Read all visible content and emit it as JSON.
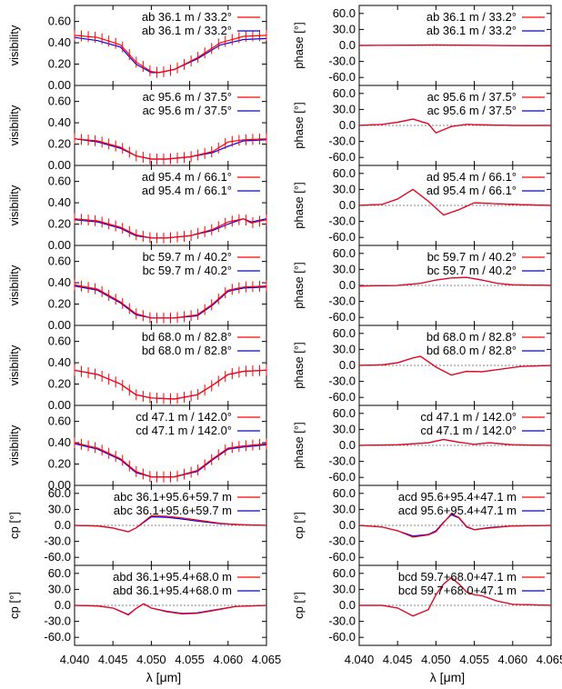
{
  "figure": {
    "xlabel": "λ [μm]",
    "x_ticks": [
      "4.040",
      "4.045",
      "4.050",
      "4.055",
      "4.060",
      "4.065"
    ],
    "x_tick_values": [
      4.04,
      4.045,
      4.05,
      4.055,
      4.06,
      4.065
    ],
    "xlim": [
      4.04,
      4.065
    ],
    "series_colors": [
      "#ff0000",
      "#0000ff"
    ]
  },
  "chart_data": [
    {
      "type": "line",
      "panel": "visibility-ab",
      "ylabel": "visibility",
      "ylim": [
        0,
        0.75
      ],
      "yticks": [
        "0.00",
        "0.20",
        "0.40",
        "0.60"
      ],
      "ytick_values": [
        0,
        0.2,
        0.4,
        0.6
      ],
      "legend": [
        "ab 36.1 m / 33.2°",
        "ab 36.1 m / 33.2°"
      ],
      "error_bars": true,
      "x": [
        4.04,
        4.043,
        4.046,
        4.048,
        4.05,
        4.051,
        4.053,
        4.056,
        4.059,
        4.062,
        4.065
      ],
      "series": [
        {
          "name": "ab 36.1 m / 33.2°",
          "values": [
            0.47,
            0.45,
            0.38,
            0.22,
            0.13,
            0.12,
            0.15,
            0.26,
            0.4,
            0.46,
            0.47
          ]
        },
        {
          "name": "ab 36.1 m / 33.2°",
          "values": [
            0.45,
            0.42,
            0.36,
            0.2,
            0.12,
            0.12,
            0.15,
            0.25,
            0.38,
            0.43,
            0.44
          ]
        }
      ]
    },
    {
      "type": "line",
      "panel": "phase-ab",
      "ylabel": "phase [°]",
      "ylim": [
        -75,
        75
      ],
      "yticks": [
        "60.0",
        "30.0",
        "0.0",
        "-30.0",
        "-60.0"
      ],
      "ytick_values": [
        60,
        30,
        0,
        -30,
        -60
      ],
      "legend": [
        "ab 36.1 m / 33.2°",
        "ab 36.1 m / 33.2°"
      ],
      "error_bars": false,
      "x": [
        4.04,
        4.045,
        4.05,
        4.055,
        4.06,
        4.065
      ],
      "series": [
        {
          "name": "ab 36.1 m / 33.2°",
          "values": [
            0,
            0.3,
            0.8,
            0.2,
            -0.3,
            -0.6
          ]
        },
        {
          "name": "ab 36.1 m / 33.2°",
          "values": [
            0,
            0.4,
            0.9,
            0.3,
            -0.2,
            -0.5
          ]
        }
      ]
    },
    {
      "type": "line",
      "panel": "visibility-ac",
      "ylabel": "visibility",
      "ylim": [
        0,
        0.75
      ],
      "yticks": [
        "0.00",
        "0.20",
        "0.40",
        "0.60"
      ],
      "ytick_values": [
        0,
        0.2,
        0.4,
        0.6
      ],
      "legend": [
        "ac 95.6 m / 37.5°",
        "ac 95.6 m / 37.5°"
      ],
      "error_bars": true,
      "x": [
        4.04,
        4.043,
        4.046,
        4.048,
        4.05,
        4.052,
        4.055,
        4.058,
        4.06,
        4.062,
        4.065
      ],
      "series": [
        {
          "name": "ac 95.6 m / 37.5°",
          "values": [
            0.25,
            0.23,
            0.17,
            0.09,
            0.06,
            0.06,
            0.08,
            0.13,
            0.22,
            0.24,
            0.25
          ]
        },
        {
          "name": "ac 95.6 m / 37.5°",
          "values": [
            0.25,
            0.22,
            0.16,
            0.09,
            0.06,
            0.06,
            0.08,
            0.12,
            0.18,
            0.23,
            0.24
          ]
        }
      ]
    },
    {
      "type": "line",
      "panel": "phase-ac",
      "ylabel": "phase [°]",
      "ylim": [
        -75,
        75
      ],
      "yticks": [
        "60.0",
        "30.0",
        "0.0",
        "-30.0",
        "-60.0"
      ],
      "ytick_values": [
        60,
        30,
        0,
        -30,
        -60
      ],
      "legend": [
        "ac 95.6 m / 37.5°",
        "ac 95.6 m / 37.5°"
      ],
      "error_bars": false,
      "x": [
        4.04,
        4.043,
        4.045,
        4.047,
        4.049,
        4.05,
        4.052,
        4.054,
        4.056,
        4.06,
        4.065
      ],
      "series": [
        {
          "name": "ac 95.6 m / 37.5°",
          "values": [
            0,
            2,
            6,
            12,
            3,
            -14,
            -2,
            2,
            1,
            0,
            0
          ]
        },
        {
          "name": "ac 95.6 m / 37.5°",
          "values": [
            0,
            2,
            6,
            12,
            3,
            -14,
            -2,
            2,
            1,
            0,
            0
          ]
        }
      ]
    },
    {
      "type": "line",
      "panel": "visibility-ad",
      "ylabel": "visibility",
      "ylim": [
        0,
        0.75
      ],
      "yticks": [
        "0.00",
        "0.20",
        "0.40",
        "0.60"
      ],
      "ytick_values": [
        0,
        0.2,
        0.4,
        0.6
      ],
      "legend": [
        "ad 95.4 m / 66.1°",
        "ad 95.4 m / 66.1°"
      ],
      "error_bars": true,
      "x": [
        4.04,
        4.043,
        4.046,
        4.048,
        4.05,
        4.052,
        4.055,
        4.058,
        4.06,
        4.062,
        4.063,
        4.065
      ],
      "series": [
        {
          "name": "ad 95.4 m / 66.1°",
          "values": [
            0.25,
            0.23,
            0.17,
            0.1,
            0.07,
            0.07,
            0.09,
            0.15,
            0.22,
            0.25,
            0.21,
            0.24
          ]
        },
        {
          "name": "ad 95.4 m / 66.1°",
          "values": [
            0.24,
            0.22,
            0.16,
            0.09,
            0.07,
            0.07,
            0.09,
            0.14,
            0.2,
            0.25,
            0.22,
            0.25
          ]
        }
      ]
    },
    {
      "type": "line",
      "panel": "phase-ad",
      "ylabel": "phase [°]",
      "ylim": [
        -75,
        75
      ],
      "yticks": [
        "60.0",
        "30.0",
        "0.0",
        "-30.0",
        "-60.0"
      ],
      "ytick_values": [
        60,
        30,
        0,
        -30,
        -60
      ],
      "legend": [
        "ad 95.4 m / 66.1°",
        "ad 95.4 m / 66.1°"
      ],
      "error_bars": false,
      "x": [
        4.04,
        4.043,
        4.045,
        4.047,
        4.049,
        4.051,
        4.053,
        4.055,
        4.058,
        4.062,
        4.065
      ],
      "series": [
        {
          "name": "ad 95.4 m / 66.1°",
          "values": [
            0,
            2,
            12,
            30,
            8,
            -18,
            -8,
            5,
            3,
            1,
            0
          ]
        },
        {
          "name": "ad 95.4 m / 66.1°",
          "values": [
            0,
            2,
            12,
            30,
            8,
            -18,
            -8,
            5,
            3,
            1,
            0
          ]
        }
      ]
    },
    {
      "type": "line",
      "panel": "visibility-bc",
      "ylabel": "visibility",
      "ylim": [
        0,
        0.75
      ],
      "yticks": [
        "0.00",
        "0.20",
        "0.40",
        "0.60"
      ],
      "ytick_values": [
        0,
        0.2,
        0.4,
        0.6
      ],
      "legend": [
        "bc 59.7 m / 40.2°",
        "bc 59.7 m / 40.2°"
      ],
      "error_bars": true,
      "x": [
        4.04,
        4.043,
        4.046,
        4.048,
        4.05,
        4.053,
        4.056,
        4.058,
        4.06,
        4.062,
        4.065
      ],
      "series": [
        {
          "name": "bc 59.7 m / 40.2°",
          "values": [
            0.38,
            0.34,
            0.22,
            0.11,
            0.07,
            0.07,
            0.1,
            0.2,
            0.33,
            0.36,
            0.37
          ]
        },
        {
          "name": "bc 59.7 m / 40.2°",
          "values": [
            0.37,
            0.33,
            0.21,
            0.1,
            0.07,
            0.07,
            0.09,
            0.19,
            0.32,
            0.35,
            0.36
          ]
        }
      ]
    },
    {
      "type": "line",
      "panel": "phase-bc",
      "ylabel": "phase [°]",
      "ylim": [
        -75,
        75
      ],
      "yticks": [
        "60.0",
        "30.0",
        "0.0",
        "-30.0",
        "-60.0"
      ],
      "ytick_values": [
        60,
        30,
        0,
        -30,
        -60
      ],
      "legend": [
        "bc 59.7 m / 40.2°",
        "bc 59.7 m / 40.2°"
      ],
      "error_bars": false,
      "x": [
        4.04,
        4.045,
        4.048,
        4.05,
        4.052,
        4.054,
        4.056,
        4.058,
        4.06,
        4.065
      ],
      "series": [
        {
          "name": "bc 59.7 m / 40.2°",
          "values": [
            -1,
            0,
            4,
            10,
            14,
            15,
            10,
            4,
            1,
            0
          ]
        },
        {
          "name": "bc 59.7 m / 40.2°",
          "values": [
            -1,
            0,
            4,
            10,
            14,
            15,
            10,
            4,
            1,
            0
          ]
        }
      ]
    },
    {
      "type": "line",
      "panel": "visibility-bd",
      "ylabel": "visibility",
      "ylim": [
        0,
        0.75
      ],
      "yticks": [
        "0.00",
        "0.20",
        "0.40",
        "0.60"
      ],
      "ytick_values": [
        0,
        0.2,
        0.4,
        0.6
      ],
      "legend": [
        "bd 68.0 m / 82.8°",
        "bd 68.0 m / 82.8°"
      ],
      "error_bars": true,
      "x": [
        4.04,
        4.043,
        4.046,
        4.048,
        4.05,
        4.053,
        4.056,
        4.058,
        4.06,
        4.062,
        4.065
      ],
      "series": [
        {
          "name": "bd 68.0 m / 82.8°",
          "values": [
            0.33,
            0.29,
            0.2,
            0.1,
            0.07,
            0.06,
            0.1,
            0.19,
            0.29,
            0.32,
            0.33
          ]
        },
        {
          "name": "bd 68.0 m / 82.8°",
          "values": [
            0.33,
            0.29,
            0.2,
            0.1,
            0.07,
            0.06,
            0.1,
            0.19,
            0.29,
            0.32,
            0.33
          ]
        }
      ]
    },
    {
      "type": "line",
      "panel": "phase-bd",
      "ylabel": "phase [°]",
      "ylim": [
        -75,
        75
      ],
      "yticks": [
        "60.0",
        "30.0",
        "0.0",
        "-30.0",
        "-60.0"
      ],
      "ytick_values": [
        60,
        30,
        0,
        -30,
        -60
      ],
      "legend": [
        "bd 68.0 m / 82.8°",
        "bd 68.0 m / 82.8°"
      ],
      "error_bars": false,
      "x": [
        4.04,
        4.043,
        4.045,
        4.047,
        4.048,
        4.05,
        4.052,
        4.054,
        4.056,
        4.058,
        4.061,
        4.065
      ],
      "series": [
        {
          "name": "bd 68.0 m / 82.8°",
          "values": [
            0,
            1,
            5,
            14,
            17,
            -3,
            -18,
            -11,
            -12,
            -8,
            -2,
            0
          ]
        },
        {
          "name": "bd 68.0 m / 82.8°",
          "values": [
            0,
            1,
            5,
            14,
            17,
            -3,
            -18,
            -11,
            -12,
            -8,
            -2,
            0
          ]
        }
      ]
    },
    {
      "type": "line",
      "panel": "visibility-cd",
      "ylabel": "visibility",
      "ylim": [
        0,
        0.75
      ],
      "yticks": [
        "0.00",
        "0.20",
        "0.40",
        "0.60"
      ],
      "ytick_values": [
        0,
        0.2,
        0.4,
        0.6
      ],
      "legend": [
        "cd 47.1 m / 142.0°",
        "cd 47.1 m / 142.0°"
      ],
      "error_bars": true,
      "x": [
        4.04,
        4.043,
        4.046,
        4.048,
        4.05,
        4.053,
        4.056,
        4.058,
        4.06,
        4.062,
        4.065
      ],
      "series": [
        {
          "name": "cd 47.1 m / 142.0°",
          "values": [
            0.4,
            0.35,
            0.25,
            0.13,
            0.08,
            0.08,
            0.14,
            0.25,
            0.35,
            0.37,
            0.39
          ]
        },
        {
          "name": "cd 47.1 m / 142.0°",
          "values": [
            0.39,
            0.34,
            0.24,
            0.12,
            0.08,
            0.08,
            0.13,
            0.24,
            0.34,
            0.36,
            0.38
          ]
        }
      ]
    },
    {
      "type": "line",
      "panel": "phase-cd",
      "ylabel": "phase [°]",
      "ylim": [
        -75,
        75
      ],
      "yticks": [
        "60.0",
        "30.0",
        "0.0",
        "-30.0",
        "-60.0"
      ],
      "ytick_values": [
        60,
        30,
        0,
        -30,
        -60
      ],
      "legend": [
        "cd 47.1 m / 142.0°",
        "cd 47.1 m / 142.0°"
      ],
      "error_bars": false,
      "x": [
        4.04,
        4.045,
        4.049,
        4.051,
        4.053,
        4.055,
        4.057,
        4.06,
        4.065
      ],
      "series": [
        {
          "name": "cd 47.1 m / 142.0°",
          "values": [
            0,
            1,
            5,
            11,
            6,
            2,
            5,
            1,
            0
          ]
        },
        {
          "name": "cd 47.1 m / 142.0°",
          "values": [
            0,
            1,
            5,
            11,
            6,
            2,
            5,
            1,
            0
          ]
        }
      ]
    },
    {
      "type": "line",
      "panel": "cp-abc",
      "ylabel": "cp [°]",
      "ylim": [
        -75,
        75
      ],
      "yticks": [
        "60.0",
        "30.0",
        "0.0",
        "-30.0",
        "-60.0"
      ],
      "ytick_values": [
        60,
        30,
        0,
        -30,
        -60
      ],
      "legend": [
        "abc 36.1+95.6+59.7 m",
        "abc 36.1+95.6+59.7 m"
      ],
      "error_bars": false,
      "x": [
        4.04,
        4.043,
        4.045,
        4.047,
        4.048,
        4.05,
        4.052,
        4.054,
        4.056,
        4.059,
        4.062,
        4.065
      ],
      "series": [
        {
          "name": "abc 36.1+95.6+59.7 m",
          "values": [
            0,
            -1,
            -5,
            -12,
            -5,
            18,
            17,
            14,
            10,
            4,
            1,
            0
          ]
        },
        {
          "name": "abc 36.1+95.6+59.7 m",
          "values": [
            0,
            -1,
            -5,
            -12,
            -5,
            16,
            15,
            12,
            8,
            3,
            1,
            0
          ]
        }
      ]
    },
    {
      "type": "line",
      "panel": "cp-acd",
      "ylabel": "cp [°]",
      "ylim": [
        -75,
        75
      ],
      "yticks": [
        "60.0",
        "30.0",
        "0.0",
        "-30.0",
        "-60.0"
      ],
      "ytick_values": [
        60,
        30,
        0,
        -30,
        -60
      ],
      "legend": [
        "acd 95.6+95.4+47.1 m",
        "acd 95.6+95.4+47.1 m"
      ],
      "error_bars": false,
      "x": [
        4.04,
        4.043,
        4.045,
        4.047,
        4.049,
        4.05,
        4.051,
        4.052,
        4.053,
        4.054,
        4.055,
        4.057,
        4.06,
        4.065
      ],
      "series": [
        {
          "name": "acd 95.6+95.4+47.1 m",
          "values": [
            0,
            -3,
            -10,
            -22,
            -18,
            -12,
            5,
            22,
            15,
            -2,
            -8,
            -5,
            -1,
            0
          ]
        },
        {
          "name": "acd 95.6+95.4+47.1 m",
          "values": [
            0,
            -3,
            -10,
            -20,
            -17,
            -10,
            6,
            20,
            14,
            -3,
            -8,
            -4,
            -1,
            0
          ]
        }
      ]
    },
    {
      "type": "line",
      "panel": "cp-abd",
      "ylabel": "cp [°]",
      "ylim": [
        -75,
        75
      ],
      "yticks": [
        "60.0",
        "30.0",
        "0.0",
        "-30.0",
        "-60.0"
      ],
      "ytick_values": [
        60,
        30,
        0,
        -30,
        -60
      ],
      "legend": [
        "abd 36.1+95.4+68.0 m",
        "abd 36.1+95.4+68.0 m"
      ],
      "error_bars": false,
      "x": [
        4.04,
        4.043,
        4.045,
        4.047,
        4.048,
        4.049,
        4.05,
        4.052,
        4.054,
        4.056,
        4.058,
        4.061,
        4.065
      ],
      "series": [
        {
          "name": "abd 36.1+95.4+68.0 m",
          "values": [
            0,
            -1,
            -5,
            -18,
            -6,
            3,
            -5,
            -12,
            -16,
            -15,
            -10,
            -2,
            0
          ]
        },
        {
          "name": "abd 36.1+95.4+68.0 m",
          "values": [
            0,
            -1,
            -5,
            -17,
            -6,
            3,
            -5,
            -11,
            -15,
            -14,
            -9,
            -2,
            0
          ]
        }
      ]
    },
    {
      "type": "line",
      "panel": "cp-bcd",
      "ylabel": "cp [°]",
      "ylim": [
        -75,
        75
      ],
      "yticks": [
        "60.0",
        "30.0",
        "0.0",
        "-30.0",
        "-60.0"
      ],
      "ytick_values": [
        60,
        30,
        0,
        -30,
        -60
      ],
      "legend": [
        "bcd 59.7+68.0+47.1 m",
        "bcd 59.7+68.0+47.1 m"
      ],
      "error_bars": false,
      "x": [
        4.04,
        4.043,
        4.045,
        4.047,
        4.049,
        4.05,
        4.051,
        4.052,
        4.053,
        4.054,
        4.055,
        4.056,
        4.058,
        4.06,
        4.065
      ],
      "series": [
        {
          "name": "bcd 59.7+68.0+47.1 m",
          "values": [
            0,
            0,
            -5,
            -20,
            -8,
            20,
            40,
            52,
            40,
            25,
            20,
            18,
            8,
            2,
            0
          ]
        },
        {
          "name": "bcd 59.7+68.0+47.1 m",
          "values": [
            0,
            0,
            -5,
            -20,
            -8,
            20,
            40,
            52,
            40,
            25,
            20,
            18,
            8,
            2,
            0
          ]
        }
      ]
    }
  ]
}
